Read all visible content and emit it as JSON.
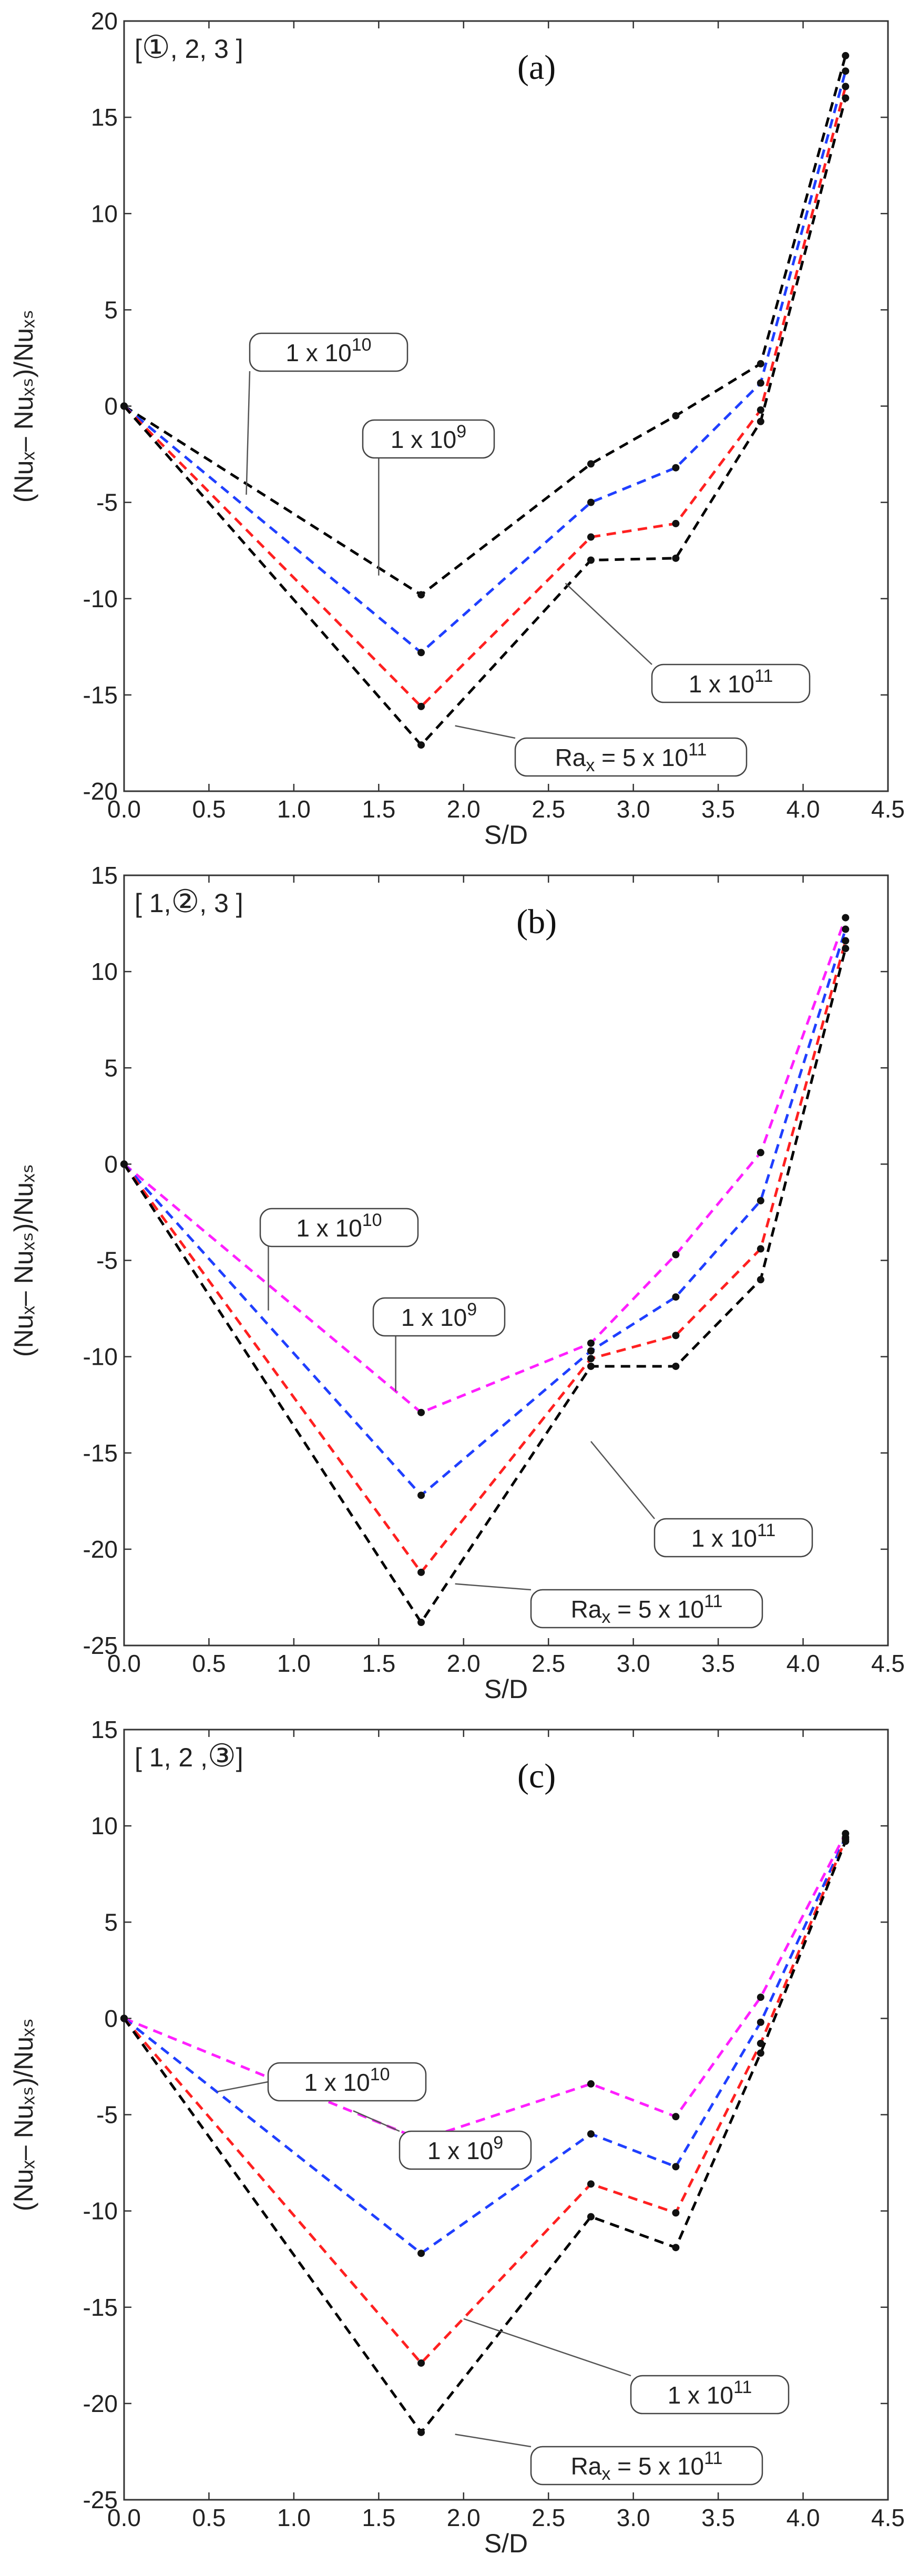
{
  "chart_data": [
    {
      "type": "line",
      "panel_label": "(a)",
      "config": {
        "prefix": "[",
        "circled": "①",
        "rest": ", 2, 3 ]"
      },
      "xlabel": "S/D",
      "ylabel": "(Nuₓ– Nuₓₛ)/Nuₓₛ",
      "xlim": [
        0,
        4.5
      ],
      "ylim": [
        -20,
        20
      ],
      "xticks": [
        0,
        0.5,
        1,
        1.5,
        2,
        2.5,
        3,
        3.5,
        4,
        4.5
      ],
      "xtick_labels": [
        "0.0",
        "0.5",
        "1.0",
        "1.5",
        "2.0",
        "2.5",
        "3.0",
        "3.5",
        "4.0",
        "4.5"
      ],
      "yticks": [
        -20,
        -15,
        -10,
        -5,
        0,
        5,
        10,
        15,
        20
      ],
      "ytick_labels": [
        "-20",
        "-15",
        "-10",
        "-5",
        "0",
        "5",
        "10",
        "15",
        "20"
      ],
      "x": [
        0,
        1.75,
        2.75,
        3.25,
        3.75,
        4.25
      ],
      "series": [
        {
          "label": "1 x 10^9",
          "color": "#000000",
          "values": [
            0,
            -9.8,
            -3.0,
            -0.5,
            2.2,
            18.2
          ]
        },
        {
          "label": "1 x 10^10",
          "color": "#1f3fff",
          "values": [
            0,
            -12.8,
            -5.0,
            -3.2,
            1.2,
            17.4
          ]
        },
        {
          "label": "1 x 10^11",
          "color": "#ff2020",
          "values": [
            0,
            -15.6,
            -6.8,
            -6.1,
            -0.2,
            16.6
          ]
        },
        {
          "label": "Ra_x = 5 x 10^11",
          "color": "#000000",
          "values": [
            0,
            -17.6,
            -8.0,
            -7.9,
            -0.8,
            16.0
          ]
        }
      ],
      "callouts": [
        {
          "base": "1 x 10",
          "exp": "10"
        },
        {
          "base": "1 x 10",
          "exp": "9"
        },
        {
          "base": "1 x 10",
          "exp": "11"
        },
        {
          "base": "Ra",
          "sub": "x",
          "mid": " = 5 x 10",
          "exp": "11"
        }
      ]
    },
    {
      "type": "line",
      "panel_label": "(b)",
      "config": {
        "prefix": "[ 1,",
        "circled": "②",
        "rest": ", 3 ]"
      },
      "xlabel": "S/D",
      "ylabel": "(Nuₓ– Nuₓₛ)/Nuₓₛ",
      "xlim": [
        0,
        4.5
      ],
      "ylim": [
        -25,
        15
      ],
      "xticks": [
        0,
        0.5,
        1,
        1.5,
        2,
        2.5,
        3,
        3.5,
        4,
        4.5
      ],
      "xtick_labels": [
        "0.0",
        "0.5",
        "1.0",
        "1.5",
        "2.0",
        "2.5",
        "3.0",
        "3.5",
        "4.0",
        "4.5"
      ],
      "yticks": [
        -25,
        -20,
        -15,
        -10,
        -5,
        0,
        5,
        10,
        15
      ],
      "ytick_labels": [
        "-25",
        "-20",
        "-15",
        "-10",
        "-5",
        "0",
        "5",
        "10",
        "15"
      ],
      "x": [
        0,
        1.75,
        2.75,
        3.25,
        3.75,
        4.25
      ],
      "series": [
        {
          "label": "1 x 10^9",
          "color": "#ff1fff",
          "values": [
            0,
            -12.9,
            -9.3,
            -4.7,
            0.6,
            12.8
          ]
        },
        {
          "label": "1 x 10^10",
          "color": "#1f3fff",
          "values": [
            0,
            -17.2,
            -9.7,
            -6.9,
            -1.9,
            12.2
          ]
        },
        {
          "label": "1 x 10^11",
          "color": "#ff2020",
          "values": [
            0,
            -21.2,
            -10.1,
            -8.9,
            -4.4,
            11.6
          ]
        },
        {
          "label": "Ra_x = 5 x 10^11",
          "color": "#000000",
          "values": [
            0,
            -23.8,
            -10.5,
            -10.5,
            -6.0,
            11.2
          ]
        }
      ],
      "callouts": [
        {
          "base": "1 x 10",
          "exp": "10"
        },
        {
          "base": "1 x 10",
          "exp": "9"
        },
        {
          "base": "1 x 10",
          "exp": "11"
        },
        {
          "base": "Ra",
          "sub": "x",
          "mid": " = 5 x 10",
          "exp": "11"
        }
      ]
    },
    {
      "type": "line",
      "panel_label": "(c)",
      "config": {
        "prefix": "[ 1, 2 ,",
        "circled": "③",
        "rest": "]"
      },
      "xlabel": "S/D",
      "ylabel": "(Nuₓ– Nuₓₛ)/Nuₓₛ",
      "xlim": [
        0,
        4.5
      ],
      "ylim": [
        -25,
        15
      ],
      "xticks": [
        0,
        0.5,
        1,
        1.5,
        2,
        2.5,
        3,
        3.5,
        4,
        4.5
      ],
      "xtick_labels": [
        "0.0",
        "0.5",
        "1.0",
        "1.5",
        "2.0",
        "2.5",
        "3.0",
        "3.5",
        "4.0",
        "4.5"
      ],
      "yticks": [
        -25,
        -20,
        -15,
        -10,
        -5,
        0,
        5,
        10,
        15
      ],
      "ytick_labels": [
        "-25",
        "-20",
        "-15",
        "-10",
        "-5",
        "0",
        "5",
        "10",
        "15"
      ],
      "x": [
        0,
        1.75,
        2.75,
        3.25,
        3.75,
        4.25
      ],
      "series": [
        {
          "label": "1 x 10^9",
          "color": "#ff1fff",
          "values": [
            0,
            -6.3,
            -3.4,
            -5.1,
            1.1,
            9.6
          ]
        },
        {
          "label": "1 x 10^10",
          "color": "#1f3fff",
          "values": [
            0,
            -12.2,
            -6.0,
            -7.7,
            -0.2,
            9.4
          ]
        },
        {
          "label": "1 x 10^11",
          "color": "#ff2020",
          "values": [
            0,
            -17.9,
            -8.6,
            -10.1,
            -1.3,
            9.3
          ]
        },
        {
          "label": "Ra_x = 5 x 10^11",
          "color": "#000000",
          "values": [
            0,
            -21.5,
            -10.3,
            -11.9,
            -1.8,
            9.2
          ]
        }
      ],
      "callouts": [
        {
          "base": "1 x 10",
          "exp": "10"
        },
        {
          "base": "1 x 10",
          "exp": "9"
        },
        {
          "base": "1 x 10",
          "exp": "11"
        },
        {
          "base": "Ra",
          "sub": "x",
          "mid": " = 5 x 10",
          "exp": "11"
        }
      ]
    }
  ]
}
